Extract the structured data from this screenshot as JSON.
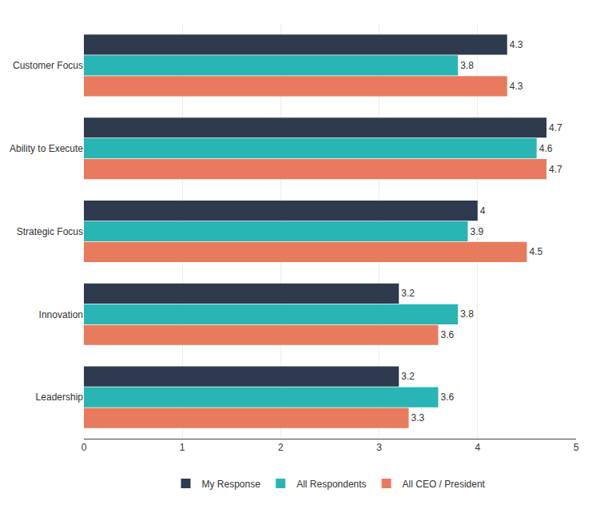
{
  "chart_data": {
    "type": "bar",
    "orientation": "horizontal",
    "categories": [
      "Leadership",
      "Innovation",
      "Strategic Focus",
      "Ability to Execute",
      "Customer Focus"
    ],
    "series": [
      {
        "name": "My Response",
        "color": "#2e3a4e",
        "values": [
          3.2,
          3.2,
          4.0,
          4.7,
          4.3
        ]
      },
      {
        "name": "All Respondents",
        "color": "#2ab5b5",
        "values": [
          3.6,
          3.8,
          3.9,
          4.6,
          3.8
        ]
      },
      {
        "name": "All CEO / President",
        "color": "#e87b5e",
        "values": [
          3.3,
          3.6,
          4.5,
          4.7,
          4.3
        ]
      }
    ],
    "xlim": [
      0,
      5
    ],
    "xticks": [
      0,
      1,
      2,
      3,
      4,
      5
    ],
    "grid": true,
    "data_labels": true,
    "legend": "bottom"
  }
}
